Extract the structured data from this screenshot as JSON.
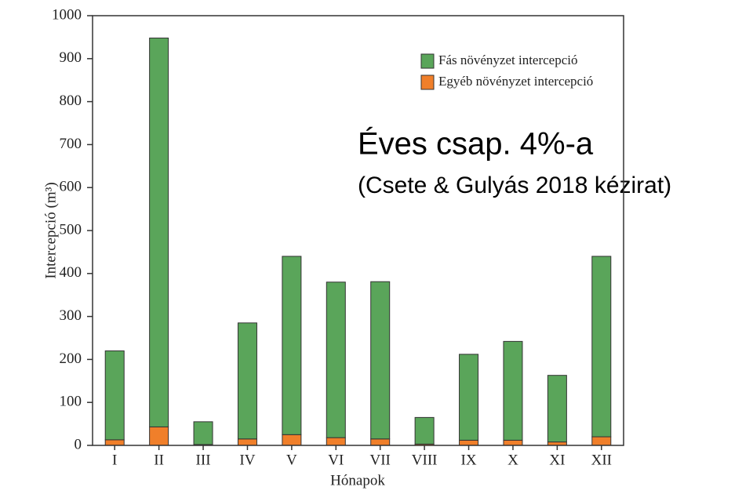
{
  "chart_data": {
    "type": "stacked_bar",
    "categories": [
      "I",
      "II",
      "III",
      "IV",
      "V",
      "VI",
      "VII",
      "VIII",
      "IX",
      "X",
      "XI",
      "XII"
    ],
    "series": [
      {
        "name": "Egyéb növényzet intercepció",
        "color": "#f07f2a",
        "values": [
          13,
          43,
          2,
          15,
          25,
          18,
          15,
          3,
          12,
          12,
          8,
          20
        ]
      },
      {
        "name": "Fás növényzet intercepció",
        "color": "#5aa55a",
        "values": [
          207,
          905,
          53,
          270,
          415,
          362,
          366,
          62,
          200,
          230,
          155,
          420
        ]
      }
    ],
    "legend_order": [
      1,
      0
    ],
    "legend": "upper right",
    "xlabel": "Hónapok",
    "ylabel": "Intercepció (m³)",
    "ylim": [
      0,
      1000
    ],
    "yticks": [
      0,
      100,
      200,
      300,
      400,
      500,
      600,
      700,
      800,
      900,
      1000
    ],
    "annotations": [
      "Éves csap. 4%-a",
      "(Csete & Gulyás 2018 kézirat)"
    ]
  }
}
